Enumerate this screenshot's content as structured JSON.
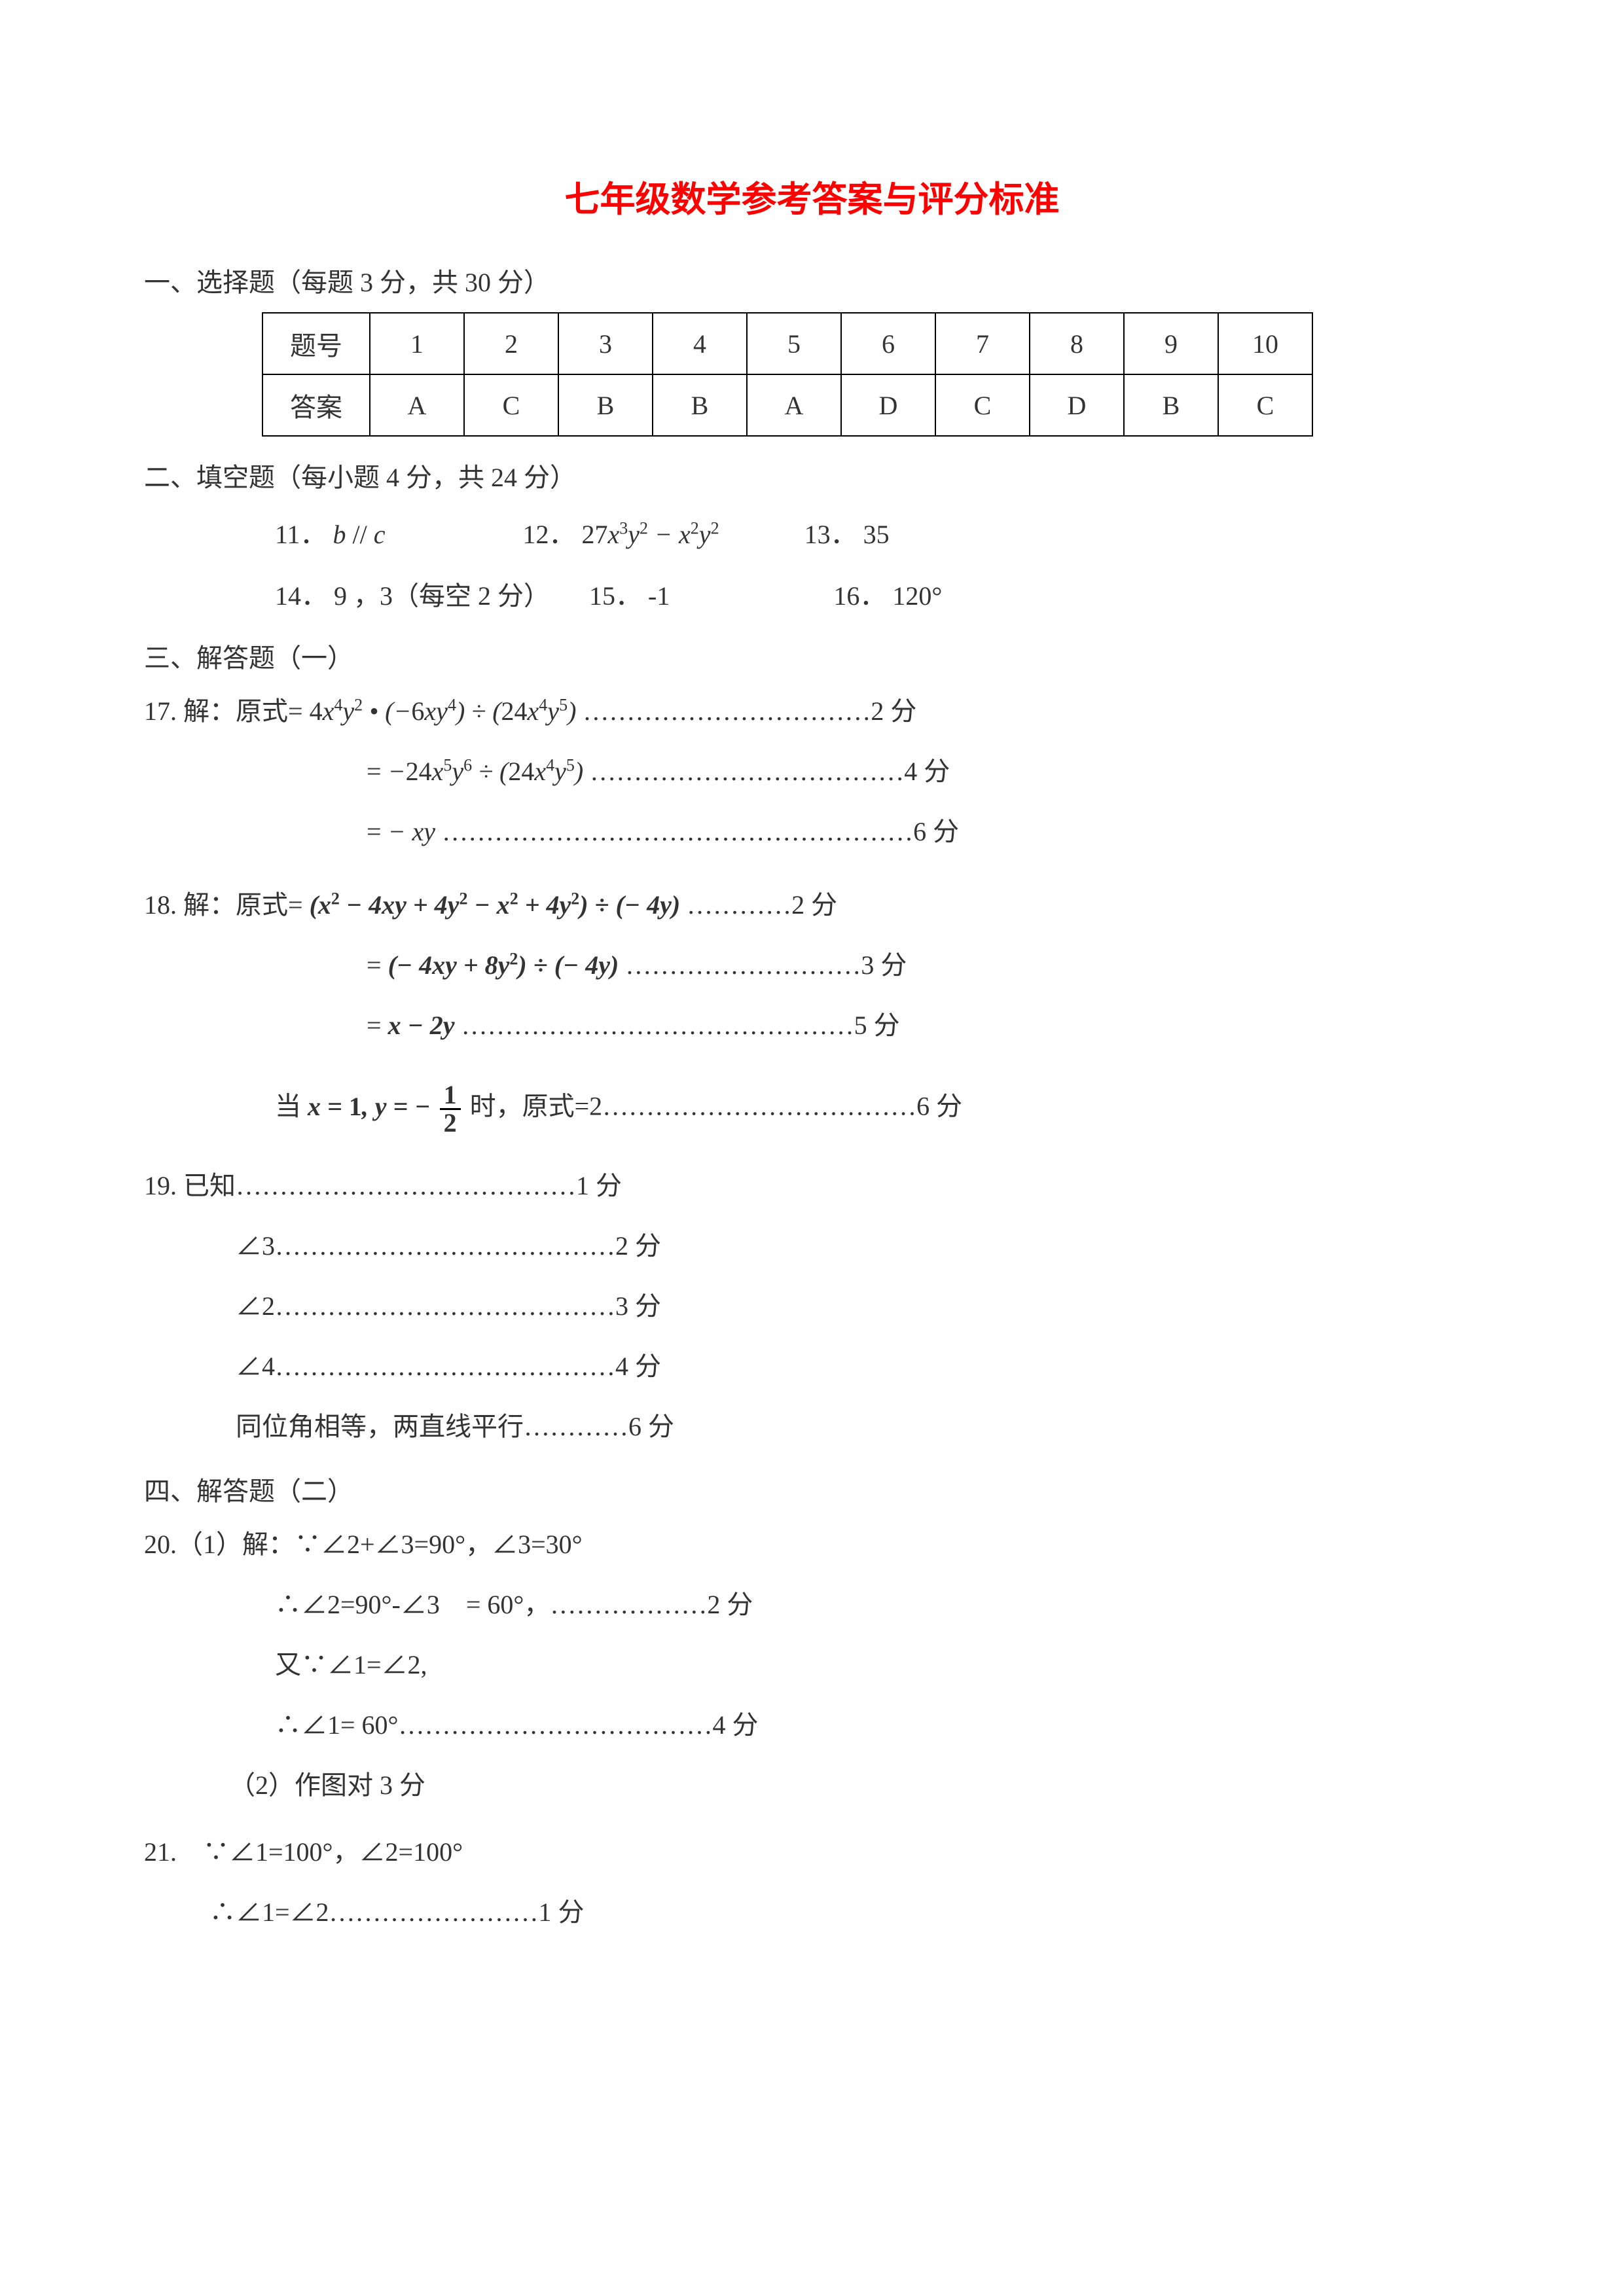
{
  "title": "七年级数学参考答案与评分标准",
  "title_color": "#ff0000",
  "body_color": "#333333",
  "font_size_title": 54,
  "font_size_body": 40,
  "section1": {
    "heading": "一、选择题（每题 3 分，共 30 分）",
    "row_label": "题号",
    "ans_label": "答案",
    "numbers": [
      "1",
      "2",
      "3",
      "4",
      "5",
      "6",
      "7",
      "8",
      "9",
      "10"
    ],
    "answers": [
      "A",
      "C",
      "B",
      "B",
      "A",
      "D",
      "C",
      "D",
      "B",
      "C"
    ]
  },
  "section2": {
    "heading": "二、填空题（每小题 4 分，共 24 分）",
    "items": [
      {
        "num": "11．",
        "content_html": "<span class='math'>b <span class='mathn'>//</span> c</span>"
      },
      {
        "num": "12．",
        "content_html": "<span class='math'><span class='mathn'>27</span>x<sup>3</sup>y<sup>2</sup> − x<sup>2</sup>y<sup>2</sup></span>"
      },
      {
        "num": "13．",
        "content_html": "35"
      },
      {
        "num": "14．",
        "content_html": "9 ，3（每空 2 分）"
      },
      {
        "num": "15．",
        "content_html": "-1"
      },
      {
        "num": "16．",
        "content_html": "120°"
      }
    ]
  },
  "section3": {
    "heading": "三、解答题（一）",
    "q17": {
      "prefix": "17. 解：原式=",
      "line1": "<span class='math'><span class='mathn'>4</span>x<sup>4</sup>y<sup>2</sup> • (−<span class='mathn'>6</span>xy<sup>4</sup>) ÷ (<span class='mathn'>24</span>x<sup>4</sup>y<sup>5</sup>)</span> ……………………………2 分",
      "line2": "= <span class='math'>−<span class='mathn'>24</span>x<sup>5</sup>y<sup>6</sup> ÷ (<span class='mathn'>24</span>x<sup>4</sup>y<sup>5</sup>)</span> ………………………………4 分",
      "line3": "= <span class='math'>− xy</span> ………………………………………………6 分"
    },
    "q18": {
      "prefix": "18. 解：原式=",
      "line1": "<span class='math bold'>(x<sup>2</sup> − 4xy + 4y<sup>2</sup> − x<sup>2</sup> + 4y<sup>2</sup>) ÷ (− 4y)</span> …………2 分",
      "line2": "= <span class='math bold'>(− 4xy + 8y<sup>2</sup>) ÷ (− 4y)</span> ………………………3 分",
      "line3": "= <span class='math bold'>x − 2y</span> ………………………………………5 分",
      "line4_pre": "当 ",
      "line4_mid_html": "<span class='math bold'>x = <span class='mathn'>1</span>, y = − </span><span class='frac'><span class='num'>1</span><span class='den'>2</span></span>",
      "line4_post": " 时，原式=2………………………………6 分"
    },
    "q19": {
      "lines": [
        "19. 已知…………………………………1 分",
        "∠3…………………………………2 分",
        "∠2…………………………………3 分",
        "∠4…………………………………4 分",
        "同位角相等，两直线平行…………6 分"
      ]
    }
  },
  "section4": {
    "heading": "四、解答题（二）",
    "q20": {
      "l1": "20.（1）解：∵∠2+∠3=90°，∠3=30°",
      "l2": "∴∠2=90°-∠3　= 60°，………………2 分",
      "l3": "又∵∠1=∠2,",
      "l4": "∴∠1= 60°………………………………4 分",
      "l5": "（2）作图对 3 分"
    },
    "q21": {
      "l1": "21.　∵∠1=100°，∠2=100°",
      "l2": "∴∠1=∠2……………………1 分"
    }
  }
}
